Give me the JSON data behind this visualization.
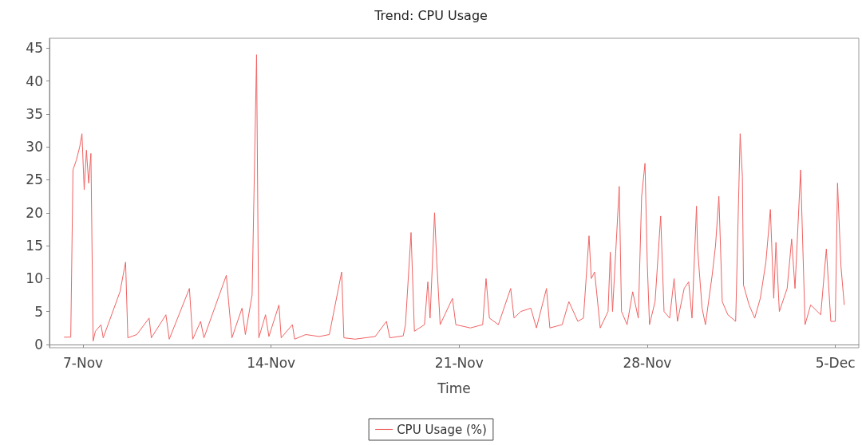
{
  "chart_data": {
    "type": "line",
    "title": "Trend: CPU Usage",
    "xlabel": "Time",
    "xlim": [
      "--11-05T18:00",
      "--12-05T21:00"
    ],
    "xticks": [
      {
        "value": "--11-07",
        "label": "7-Nov"
      },
      {
        "value": "--11-14",
        "label": "14-Nov"
      },
      {
        "value": "--11-21",
        "label": "21-Nov"
      },
      {
        "value": "--11-28",
        "label": "28-Nov"
      },
      {
        "value": "--12-05",
        "label": "5-Dec"
      }
    ],
    "ylim": [
      -0.5,
      46.5
    ],
    "yticks": [
      0,
      5,
      10,
      15,
      20,
      25,
      30,
      35,
      40,
      45
    ],
    "legend": "bottom",
    "marker": "none",
    "line_style": "solid",
    "series": [
      {
        "name": "CPU Usage (%)",
        "color": "#f06262",
        "x": [
          "--11-06T07:00",
          "--11-06T13:00",
          "--11-06T15:00",
          "--11-06T18:00",
          "--11-06T21:00",
          "--11-06T23:00",
          "--11-07T01:00",
          "--11-07T03:00",
          "--11-07T05:00",
          "--11-07T07:00",
          "--11-07T09:00",
          "--11-07T11:00",
          "--11-07T16:00",
          "--11-07T18:00",
          "--11-08T09:00",
          "--11-08T14:00",
          "--11-08T16:00",
          "--11-09T00:00",
          "--11-09T11:00",
          "--11-09T13:00",
          "--11-10T02:00",
          "--11-10T05:00",
          "--11-10T23:00",
          "--11-11T02:00",
          "--11-11T09:00",
          "--11-11T12:00",
          "--11-12T08:00",
          "--11-12T10:00",
          "--11-12T13:00",
          "--11-12T22:00",
          "--11-13T01:00",
          "--11-13T07:00",
          "--11-13T11:00",
          "--11-13T13:00",
          "--11-13T19:00",
          "--11-13T22:00",
          "--11-14T07:00",
          "--11-14T09:00",
          "--11-14T19:00",
          "--11-14T21:00",
          "--11-15T07:00",
          "--11-15T19:00",
          "--11-16T04:00",
          "--11-16T15:00",
          "--11-16T17:00",
          "--11-17T03:00",
          "--11-17T21:00",
          "--11-18T07:00",
          "--11-18T10:00",
          "--11-18T22:00",
          "--11-19T00:00",
          "--11-19T05:00",
          "--11-19T08:00",
          "--11-19T17:00",
          "--11-19T20:00",
          "--11-19T22:00",
          "--11-20T02:00",
          "--11-20T04:00",
          "--11-20T07:00",
          "--11-20T18:00",
          "--11-20T21:00",
          "--11-21T10:00",
          "--11-21T21:00",
          "--11-22T00:00",
          "--11-22T03:00",
          "--11-22T11:00",
          "--11-22T22:00",
          "--11-23T01:00",
          "--11-23T07:00",
          "--11-23T16:00",
          "--11-23T21:00",
          "--11-24T06:00",
          "--11-24T09:00",
          "--11-24T20:00",
          "--11-25T02:00",
          "--11-25T10:00",
          "--11-25T15:00",
          "--11-25T20:00",
          "--11-25T22:00",
          "--11-26T01:00",
          "--11-26T06:00",
          "--11-26T13:00",
          "--11-26T15:00",
          "--11-26T17:00",
          "--11-26T23:00",
          "--11-27T01:00",
          "--11-27T06:00",
          "--11-27T11:00",
          "--11-27T16:00",
          "--11-27T19:00",
          "--11-27T22:00",
          "--11-28T00:00",
          "--11-28T02:00",
          "--11-28T07:00",
          "--11-28T12:00",
          "--11-28T15:00",
          "--11-28T20:00",
          "--11-29T00:00",
          "--11-29T03:00",
          "--11-29T09:00",
          "--11-29T13:00",
          "--11-29T16:00",
          "--11-29T20:00",
          "--11-29T21:00",
          "--11-30T01:00",
          "--11-30T04:00",
          "--11-30T10:00",
          "--11-30T13:00",
          "--11-30T16:00",
          "--11-30T19:00",
          "--12-01T00:00",
          "--12-01T07:00",
          "--12-01T11:00",
          "--12-01T13:00",
          "--12-01T14:00",
          "--12-01T19:00",
          "--12-02T00:00",
          "--12-02T05:00",
          "--12-02T10:00",
          "--12-02T14:00",
          "--12-02T17:00",
          "--12-02T19:00",
          "--12-02T22:00",
          "--12-03T05:00",
          "--12-03T09:00",
          "--12-03T12:00",
          "--12-03T17:00",
          "--12-03T21:00",
          "--12-04T02:00",
          "--12-04T11:00",
          "--12-04T16:00",
          "--12-04T20:00",
          "--12-05T00:00",
          "--12-05T02:00",
          "--12-05T05:00",
          "--12-05T08:00"
        ],
        "values": [
          1.1,
          1.1,
          26.5,
          28,
          30,
          32,
          23.5,
          29.5,
          24.5,
          29,
          0.5,
          2,
          3,
          1,
          8,
          12.5,
          1,
          1.5,
          4,
          1,
          4.5,
          0.8,
          8.5,
          0.8,
          3.5,
          1,
          10.5,
          6.5,
          1,
          5.5,
          1.5,
          7.5,
          44,
          1,
          4.5,
          1.2,
          6,
          1,
          3,
          0.8,
          1.5,
          1.2,
          1.5,
          11,
          1,
          0.8,
          1.2,
          3.5,
          1,
          1.3,
          3,
          17,
          2,
          3,
          9.5,
          4,
          20,
          12.5,
          3,
          7,
          3,
          2.5,
          3,
          10,
          4,
          3,
          8.5,
          4,
          5,
          5.5,
          2.5,
          8.5,
          2.5,
          3,
          6.5,
          3.5,
          4,
          16.5,
          10,
          11,
          2.5,
          5,
          14,
          5,
          24,
          5,
          3,
          8,
          4,
          22.5,
          27.5,
          12.5,
          3,
          6.5,
          19.5,
          5,
          4,
          10,
          3.5,
          8.5,
          9.5,
          4,
          21,
          14.5,
          5.5,
          3,
          10.5,
          15,
          22.5,
          6.5,
          4.5,
          3.5,
          32,
          25.5,
          9,
          6,
          4,
          7,
          12.5,
          20.5,
          7,
          15.5,
          5,
          8.5,
          16,
          8.5,
          26.5,
          3,
          6,
          4.5,
          14.5,
          3.5,
          3.5,
          24.5,
          12,
          6
        ]
      }
    ]
  }
}
